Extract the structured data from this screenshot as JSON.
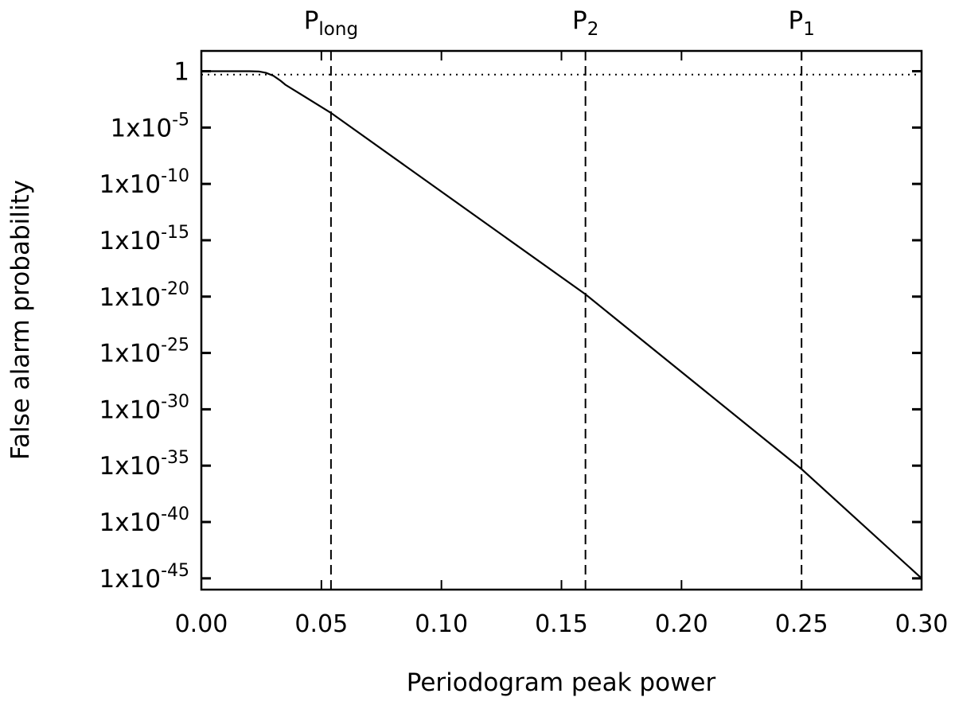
{
  "chart_data": {
    "type": "line",
    "title": "",
    "xlabel": "Periodogram peak power",
    "ylabel": "False alarm probability",
    "xlim": [
      0.0,
      0.3
    ],
    "ylim_log10": [
      -46,
      1.8
    ],
    "y_scale": "log",
    "grid": false,
    "legend": "none",
    "x_ticks": [
      {
        "value": 0.0,
        "label": "0.00"
      },
      {
        "value": 0.05,
        "label": "0.05"
      },
      {
        "value": 0.1,
        "label": "0.10"
      },
      {
        "value": 0.15,
        "label": "0.15"
      },
      {
        "value": 0.2,
        "label": "0.20"
      },
      {
        "value": 0.25,
        "label": "0.25"
      },
      {
        "value": 0.3,
        "label": "0.30"
      }
    ],
    "y_ticks": [
      {
        "log10": 0,
        "base": "1",
        "exp": ""
      },
      {
        "log10": -5,
        "base": "1x10",
        "exp": "-5"
      },
      {
        "log10": -10,
        "base": "1x10",
        "exp": "-10"
      },
      {
        "log10": -15,
        "base": "1x10",
        "exp": "-15"
      },
      {
        "log10": -20,
        "base": "1x10",
        "exp": "-20"
      },
      {
        "log10": -25,
        "base": "1x10",
        "exp": "-25"
      },
      {
        "log10": -30,
        "base": "1x10",
        "exp": "-30"
      },
      {
        "log10": -35,
        "base": "1x10",
        "exp": "-35"
      },
      {
        "log10": -40,
        "base": "1x10",
        "exp": "-40"
      },
      {
        "log10": -45,
        "base": "1x10",
        "exp": "-45"
      }
    ],
    "series": [
      {
        "color": "#000000",
        "x": [
          0.0,
          0.02,
          0.024,
          0.027,
          0.03,
          0.033,
          0.035,
          0.054,
          0.16,
          0.25,
          0.3
        ],
        "log10_y": [
          0.0,
          0.0,
          -0.02,
          -0.15,
          -0.4,
          -0.85,
          -1.2,
          -3.7,
          -19.8,
          -35.3,
          -45.0
        ]
      }
    ],
    "reference_lines": [
      {
        "orientation": "horizontal",
        "style": "dotted",
        "y": 0.5
      },
      {
        "orientation": "vertical",
        "style": "dashed",
        "x": 0.054,
        "label_main": "P",
        "label_sub": "long"
      },
      {
        "orientation": "vertical",
        "style": "dashed",
        "x": 0.16,
        "label_main": "P",
        "label_sub": "2"
      },
      {
        "orientation": "vertical",
        "style": "dashed",
        "x": 0.25,
        "label_main": "P",
        "label_sub": "1"
      }
    ]
  }
}
